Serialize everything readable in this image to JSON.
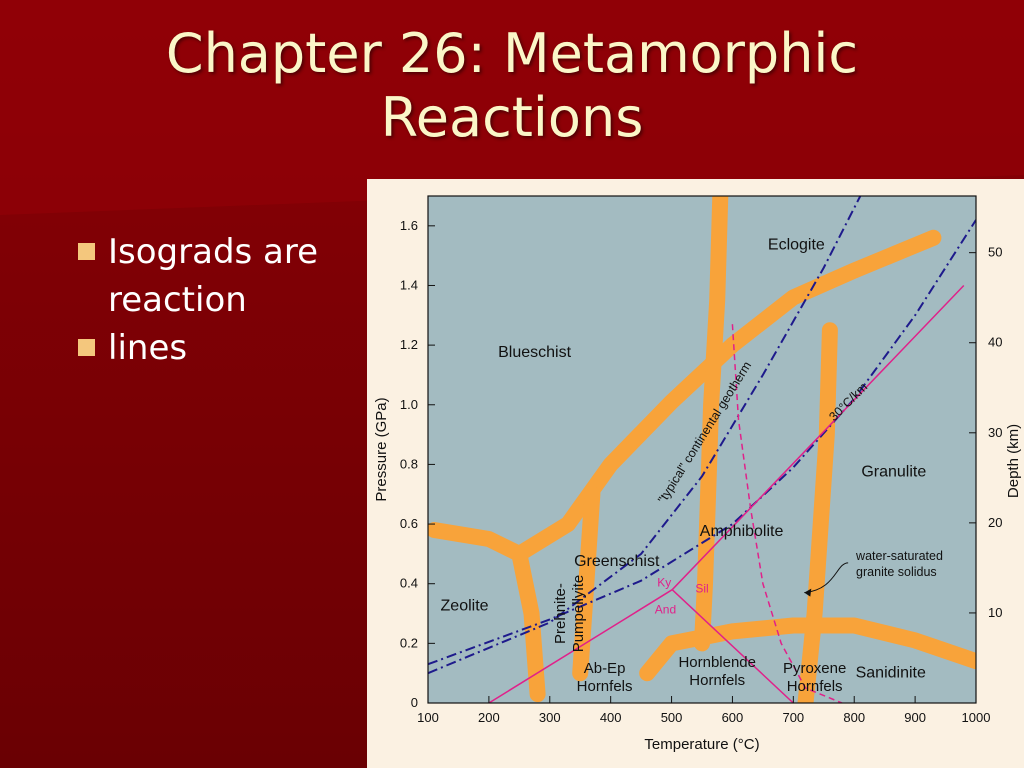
{
  "slide": {
    "title_line1": "Chapter 26: Metamorphic",
    "title_line2": "Reactions",
    "bullets": [
      {
        "text": "Isograds are reaction"
      },
      {
        "text": "lines"
      }
    ],
    "colors": {
      "background": "#7a0004",
      "title_text": "#fbf6c8",
      "bullet_marker": "#f4c77d",
      "plot_bg": "#a3bbc1",
      "facies_band": "#f8a33a",
      "geotherm_line": "#1e1a8c",
      "reaction_line": "#e0218a"
    }
  },
  "chart_data": {
    "type": "diagram",
    "xlabel": "Temperature (°C)",
    "ylabel": "Pressure (GPa)",
    "y2label": "Depth (km)",
    "xlim": [
      100,
      1000
    ],
    "ylim": [
      0,
      1.7
    ],
    "x_ticks": [
      100,
      200,
      300,
      400,
      500,
      600,
      700,
      800,
      900,
      1000
    ],
    "y_ticks": [
      0,
      0.2,
      0.4,
      0.6,
      0.8,
      1.0,
      1.2,
      1.4,
      1.6
    ],
    "y_tick_labels": [
      "0",
      "0.2",
      "0.4",
      "0.6",
      "0.8",
      "1.0",
      "1.2",
      "1.4",
      "1.6"
    ],
    "depth_ticks": [
      10,
      20,
      30,
      40,
      50
    ],
    "facies_labels": [
      {
        "text": "Eclogite",
        "x": 705,
        "y": 1.52
      },
      {
        "text": "Blueschist",
        "x": 275,
        "y": 1.16
      },
      {
        "text": "Granulite",
        "x": 865,
        "y": 0.76
      },
      {
        "text": "Amphibolite",
        "x": 615,
        "y": 0.56
      },
      {
        "text": "Greenschist",
        "x": 410,
        "y": 0.46
      },
      {
        "text": "Zeolite",
        "x": 160,
        "y": 0.31
      },
      {
        "text": "Sanidinite",
        "x": 860,
        "y": 0.085
      }
    ],
    "multiline_labels": [
      {
        "lines": [
          "Prehnite-",
          "Pumpellyite"
        ],
        "x": 325,
        "y": 0.3,
        "rotate": -90
      },
      {
        "lines": [
          "Ab-Ep",
          "Hornfels"
        ],
        "x": 390,
        "y": 0.1
      },
      {
        "lines": [
          "Hornblende",
          "Hornfels"
        ],
        "x": 575,
        "y": 0.12
      },
      {
        "lines": [
          "Pyroxene",
          "Hornfels"
        ],
        "x": 735,
        "y": 0.1
      },
      {
        "lines": [
          "water-saturated",
          "granite solidus"
        ],
        "x": 803,
        "y": 0.48
      }
    ],
    "reaction_labels": [
      {
        "text": "Ky",
        "x": 488,
        "y": 0.39
      },
      {
        "text": "Sil",
        "x": 550,
        "y": 0.37
      },
      {
        "text": "And",
        "x": 490,
        "y": 0.3
      }
    ],
    "geotherm_labels": [
      {
        "text": "\"typical\" continental geotherm",
        "x": 560,
        "y": 0.9,
        "rotate": -58
      },
      {
        "text": "30°C/km",
        "x": 795,
        "y": 1.0,
        "rotate": -45
      }
    ],
    "series": [
      {
        "name": "\"typical\" continental geotherm",
        "style": "dash-dot",
        "points": [
          [
            100,
            0.1
          ],
          [
            300,
            0.27
          ],
          [
            450,
            0.5
          ],
          [
            550,
            0.76
          ],
          [
            650,
            1.1
          ],
          [
            750,
            1.46
          ],
          [
            810,
            1.7
          ]
        ]
      },
      {
        "name": "30°C/km",
        "style": "dash-dot",
        "points": [
          [
            100,
            0.13
          ],
          [
            300,
            0.28
          ],
          [
            450,
            0.41
          ],
          [
            600,
            0.6
          ],
          [
            700,
            0.79
          ],
          [
            800,
            1.02
          ],
          [
            900,
            1.3
          ],
          [
            1000,
            1.62
          ]
        ]
      },
      {
        "name": "water-saturated granite solidus",
        "style": "dashed",
        "points": [
          [
            600,
            1.27
          ],
          [
            610,
            0.95
          ],
          [
            630,
            0.65
          ],
          [
            650,
            0.4
          ],
          [
            680,
            0.2
          ],
          [
            720,
            0.05
          ],
          [
            780,
            0.0
          ]
        ]
      },
      {
        "name": "Ky-Sil-And",
        "style": "solid",
        "segments": [
          [
            [
              200,
              0.0
            ],
            [
              501,
              0.38
            ]
          ],
          [
            [
              501,
              0.38
            ],
            [
              700,
              0.0
            ]
          ],
          [
            [
              501,
              0.38
            ],
            [
              980,
              1.4
            ]
          ]
        ]
      }
    ],
    "facies_boundaries": [
      [
        [
          110,
          0.58
        ],
        [
          200,
          0.55
        ],
        [
          250,
          0.5
        ],
        [
          330,
          0.6
        ],
        [
          400,
          0.8
        ],
        [
          500,
          1.01
        ],
        [
          600,
          1.2
        ],
        [
          700,
          1.36
        ],
        [
          800,
          1.45
        ],
        [
          930,
          1.56
        ]
      ],
      [
        [
          250,
          0.5
        ],
        [
          270,
          0.3
        ],
        [
          280,
          0.03
        ]
      ],
      [
        [
          580,
          1.7
        ],
        [
          575,
          1.35
        ],
        [
          565,
          1.0
        ],
        [
          560,
          0.7
        ],
        [
          555,
          0.4
        ],
        [
          550,
          0.2
        ]
      ],
      [
        [
          370,
          0.7
        ],
        [
          360,
          0.4
        ],
        [
          350,
          0.1
        ]
      ],
      [
        [
          760,
          1.25
        ],
        [
          755,
          0.9
        ],
        [
          745,
          0.6
        ],
        [
          735,
          0.3
        ],
        [
          720,
          0.0
        ]
      ],
      [
        [
          460,
          0.1
        ],
        [
          500,
          0.2
        ],
        [
          600,
          0.24
        ],
        [
          700,
          0.26
        ],
        [
          800,
          0.26
        ],
        [
          900,
          0.21
        ],
        [
          1000,
          0.14
        ]
      ]
    ]
  }
}
